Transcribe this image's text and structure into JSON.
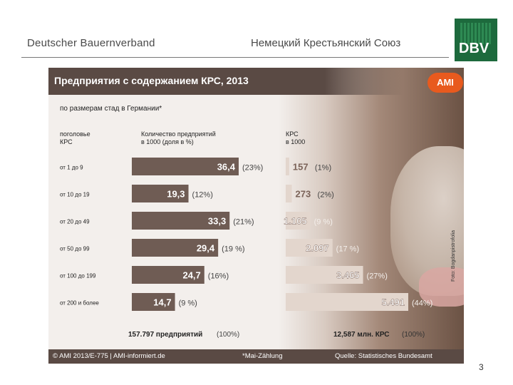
{
  "header": {
    "left_text": "Deutscher Bauernverband",
    "right_text": "Немецкий Крестьянский Союз",
    "logo_text": "DBV"
  },
  "panel": {
    "title": "Предприятия с содержанием КРС, 2013",
    "brand": "AMI",
    "subtitle": "по размерам стад в Германии*",
    "col_head_1": "поголовье\nКРС",
    "col_head_2": "Количество предприятий\nв 1000 (доля в %)",
    "col_head_3": "КРС\nв 1000",
    "footer_left": "© AMI 2013/E-775 | AMI-informiert.de",
    "footer_mid": "*Mai-Zählung",
    "footer_right": "Quelle: Statistisches Bundesamt",
    "photo_credit": "Foto: Bogdanpistrofolia"
  },
  "chart_data": {
    "type": "bar",
    "title": "Предприятия с содержанием КРС, 2013",
    "categories": [
      "от 1 до 9",
      "от 10 до 19",
      "от 20 до 49",
      "от 50 до 99",
      "от 100 до 199",
      "от 200 и более"
    ],
    "series": [
      {
        "name": "Количество предприятий в 1000 (доля в %)",
        "values": [
          36.4,
          19.3,
          33.3,
          29.4,
          24.7,
          14.7
        ],
        "labels": [
          "36,4",
          "19,3",
          "33,3",
          "29,4",
          "24,7",
          "14,7"
        ],
        "shares": [
          "(23%)",
          "(12%)",
          "(21%)",
          "(19 %)",
          "(16%)",
          "(9 %)"
        ],
        "total_label": "157.797 предприятий",
        "total_share": "(100%)"
      },
      {
        "name": "КРС в 1000",
        "values": [
          157,
          273,
          1105,
          2097,
          3465,
          5491
        ],
        "labels": [
          "157",
          "273",
          "1.105",
          "2.097",
          "3.465",
          "5.491"
        ],
        "shares": [
          "(1%)",
          "(2%)",
          "(9 %)",
          "(17 %)",
          "(27%)",
          "(44%)"
        ],
        "total_label": "12,587 млн. КРС",
        "total_share": "(100%)"
      }
    ],
    "colors": {
      "bar1": "#6f5c54",
      "bar2": "#e3d6cd",
      "bar2_dark": "#7b6359"
    }
  },
  "page_number": "3"
}
